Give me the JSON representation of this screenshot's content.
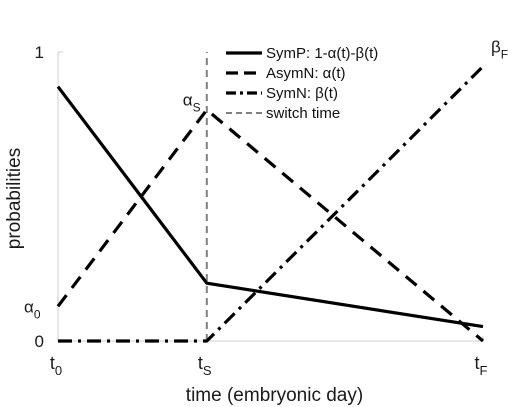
{
  "chart_data": {
    "type": "line",
    "xlabel": "time (embryonic day)",
    "ylabel": "probabilities",
    "ylim": [
      0,
      1
    ],
    "xlim": [
      0,
      1
    ],
    "grid": false,
    "legend_position": "top-right",
    "x_ticks": [
      {
        "x": 0.0,
        "base": "t",
        "sub": "0"
      },
      {
        "x": 0.35,
        "base": "t",
        "sub": "S"
      },
      {
        "x": 1.0,
        "base": "t",
        "sub": "F"
      }
    ],
    "y_ticks": [
      {
        "y": 0,
        "label": "0"
      },
      {
        "y": 1,
        "label": "1"
      }
    ],
    "annotations": [
      {
        "id": "alpha0",
        "base": "α",
        "sub": "0",
        "x": 0.0,
        "y": 0.12
      },
      {
        "id": "alphaS",
        "base": "α",
        "sub": "S",
        "x": 0.35,
        "y": 0.78
      },
      {
        "id": "betaF",
        "base": "β",
        "sub": "F",
        "x": 1.0,
        "y": 0.95
      }
    ],
    "series": [
      {
        "name": "SymP: 1-α(t)-β(t)",
        "style": "solid",
        "color": "#000000",
        "x": [
          0.0,
          0.35,
          1.0
        ],
        "y": [
          0.88,
          0.2,
          0.05
        ]
      },
      {
        "name": "AsymN: α(t)",
        "style": "dashed",
        "color": "#000000",
        "x": [
          0.0,
          0.35,
          1.0
        ],
        "y": [
          0.12,
          0.8,
          0.0
        ]
      },
      {
        "name": "SymN: β(t)",
        "style": "dashdot",
        "color": "#000000",
        "x": [
          0.0,
          0.35,
          1.0
        ],
        "y": [
          0.0,
          0.0,
          0.95
        ]
      },
      {
        "name": "switch time",
        "style": "dashed-thin",
        "color": "#808080",
        "x": [
          0.35,
          0.35
        ],
        "y": [
          0.0,
          1.0
        ]
      }
    ]
  }
}
